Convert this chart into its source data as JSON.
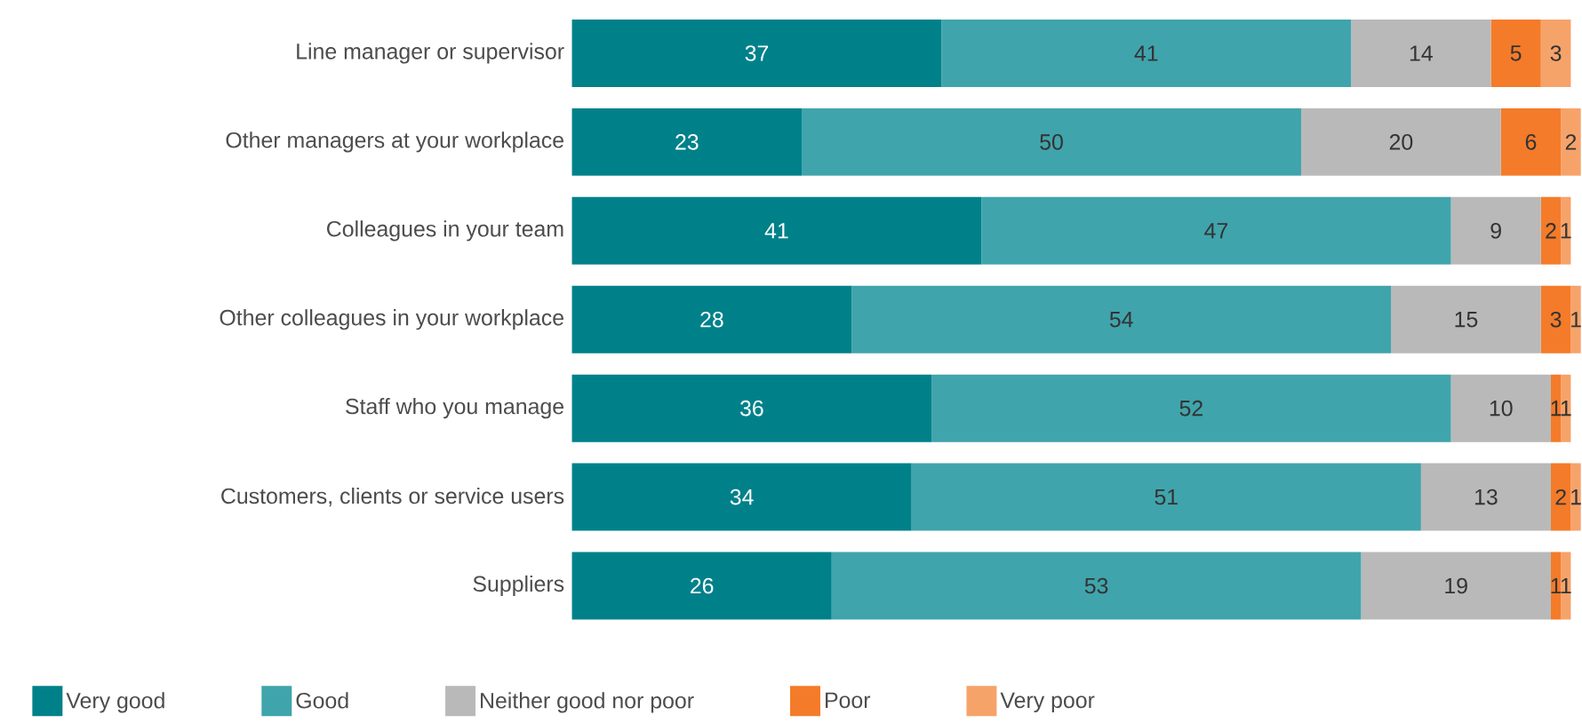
{
  "chart_data": {
    "type": "bar",
    "orientation": "horizontal",
    "stacked": true,
    "data_labels": true,
    "legend": "bottom",
    "categories": [
      "Line manager or supervisor",
      "Other managers at your workplace",
      "Colleagues in your team",
      "Other colleagues in your workplace",
      "Staff who you manage",
      "Customers, clients or service users",
      "Suppliers"
    ],
    "series": [
      {
        "name": "Very good",
        "color": "#00818a",
        "values": [
          37,
          23,
          41,
          28,
          36,
          34,
          26
        ]
      },
      {
        "name": "Good",
        "color": "#40a4ac",
        "values": [
          41,
          50,
          47,
          54,
          52,
          51,
          53
        ]
      },
      {
        "name": "Neither good nor poor",
        "color": "#b9b9b9",
        "values": [
          14,
          20,
          9,
          15,
          10,
          13,
          19
        ]
      },
      {
        "name": "Poor",
        "color": "#f47b29",
        "values": [
          5,
          6,
          2,
          3,
          1,
          2,
          1
        ]
      },
      {
        "name": "Very poor",
        "color": "#f6a36a",
        "values": [
          3,
          2,
          1,
          1,
          1,
          1,
          1
        ]
      }
    ]
  }
}
